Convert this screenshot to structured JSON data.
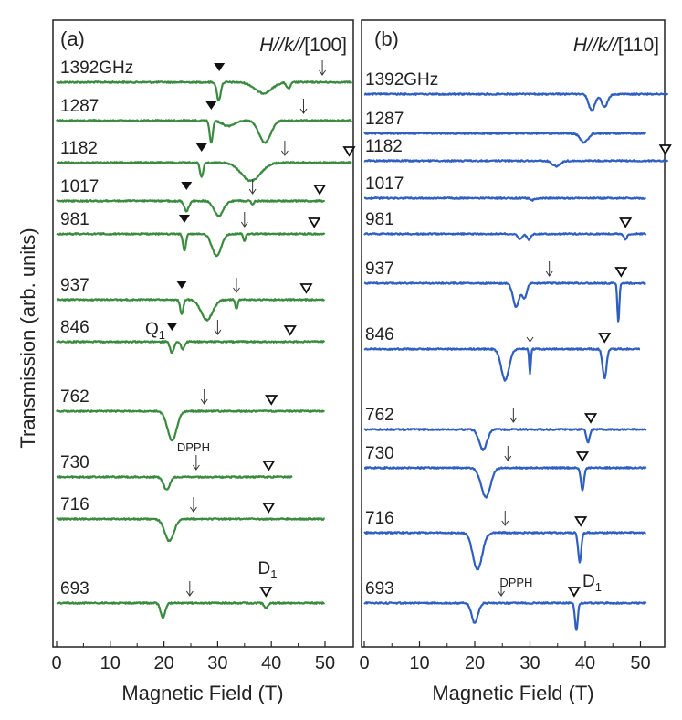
{
  "figure": {
    "ylabel": "Transmission (arb. units)",
    "xlabel": "Magnetic Field (T)"
  },
  "chart_data": [
    {
      "type": "line",
      "panel": "(a)",
      "field_prefix": "H//k//",
      "field_direction": "[100]",
      "xlabel": "Magnetic Field (T)",
      "ylabel": "Transmission (arb. units)",
      "xlim": [
        0,
        55
      ],
      "xticks": [
        0,
        10,
        20,
        30,
        40,
        50
      ],
      "color": "#3a8a3f",
      "grid": false,
      "series": [
        {
          "label": "1392GHz",
          "x_end": 55,
          "filled": 30.3,
          "open": null,
          "arrow": 49.5,
          "dips": [
            [
              30.2,
              20,
              0.5
            ],
            [
              38.5,
              12,
              2.2
            ],
            [
              43.2,
              7,
              0.5
            ]
          ]
        },
        {
          "label": "1287",
          "x_end": 55,
          "filled": 28.8,
          "open": null,
          "arrow": 46,
          "dips": [
            [
              28.8,
              24,
              0.4
            ],
            [
              32,
              6,
              1.5
            ],
            [
              38.8,
              24,
              1.5
            ]
          ]
        },
        {
          "label": "1182",
          "x_end": 55,
          "filled": 27,
          "open": 54.5,
          "arrow": 42.5,
          "dips": [
            [
              27,
              16,
              0.4
            ],
            [
              36.2,
              20,
              2.5
            ]
          ]
        },
        {
          "label": "1017",
          "x_end": 50,
          "filled": 24.2,
          "open": 49,
          "arrow": 36.5,
          "dips": [
            [
              24.2,
              11,
              0.6
            ],
            [
              30.2,
              16,
              1.2
            ],
            [
              36.5,
              4,
              0.3
            ]
          ]
        },
        {
          "label": "981",
          "x_end": 50,
          "filled": 23.8,
          "open": 48,
          "arrow": 35,
          "dips": [
            [
              23.8,
              18,
              0.4
            ],
            [
              29.8,
              24,
              1.2
            ],
            [
              35,
              8,
              0.3
            ]
          ]
        },
        {
          "label": "937",
          "x_end": 50,
          "filled": 23.3,
          "open": 46.5,
          "arrow": 33.5,
          "dips": [
            [
              23.3,
              16,
              0.4
            ],
            [
              28,
              22,
              1.5
            ],
            [
              33.5,
              10,
              0.3
            ]
          ]
        },
        {
          "label": "846",
          "x_end": 50,
          "filled": 21.5,
          "open": 43.5,
          "arrow": 30,
          "dips": [
            [
              21.5,
              12,
              0.5
            ],
            [
              23.5,
              8,
              0.5
            ]
          ]
        },
        {
          "label": "762",
          "x_end": 50,
          "filled": null,
          "open": 40,
          "arrow": 27.5,
          "dips": [
            [
              21.5,
              32,
              1.2
            ]
          ]
        },
        {
          "label": "730",
          "x_end": 44,
          "filled": null,
          "open": 39.5,
          "arrow": 26,
          "dips": [
            [
              20.5,
              14,
              0.8
            ]
          ]
        },
        {
          "label": "716",
          "x_end": 50,
          "filled": null,
          "open": 39.5,
          "arrow": 25.5,
          "dips": [
            [
              21,
              24,
              1.2
            ]
          ]
        },
        {
          "label": "693",
          "x_end": 50,
          "filled": null,
          "open": 39,
          "arrow": 24.8,
          "dips": [
            [
              19.8,
              16,
              0.6
            ],
            [
              39,
              5,
              0.5
            ]
          ]
        }
      ],
      "annotations": {
        "q_label": "Q",
        "q_sub": "1",
        "d_label": "D",
        "d_sub": "1",
        "dpph": "DPPH"
      }
    },
    {
      "type": "line",
      "panel": "(b)",
      "field_prefix": "H//k//",
      "field_direction": "[110]",
      "xlabel": "Magnetic Field (T)",
      "ylabel": "Transmission (arb. units)",
      "xlim": [
        0,
        55
      ],
      "xticks": [
        0,
        10,
        20,
        30,
        40,
        50
      ],
      "color": "#2f5fc0",
      "grid": false,
      "series": [
        {
          "label": "1392GHz",
          "x_end": 55,
          "open": null,
          "arrow": null,
          "dips": [
            [
              41.2,
              18,
              0.8
            ],
            [
              43.5,
              14,
              0.8
            ]
          ]
        },
        {
          "label": "1287",
          "x_end": 51,
          "open": null,
          "arrow": null,
          "dips": [
            [
              39.8,
              10,
              1.0
            ]
          ]
        },
        {
          "label": "1182",
          "x_end": 55,
          "open": 54.5,
          "arrow": null,
          "dips": [
            [
              34.8,
              6,
              1.0
            ]
          ]
        },
        {
          "label": "1017",
          "x_end": 51,
          "open": null,
          "arrow": null,
          "dips": [
            [
              30.5,
              2,
              0.5
            ]
          ]
        },
        {
          "label": "981",
          "x_end": 51,
          "open": 47.3,
          "arrow": null,
          "dips": [
            [
              28.2,
              6,
              0.5
            ],
            [
              29.8,
              6,
              0.5
            ],
            [
              47.3,
              6,
              0.4
            ]
          ]
        },
        {
          "label": "937",
          "x_end": 51,
          "open": 46.5,
          "arrow": 33.5,
          "dips": [
            [
              27.5,
              26,
              0.8
            ],
            [
              29,
              16,
              0.6
            ],
            [
              46,
              42,
              0.25
            ]
          ]
        },
        {
          "label": "846",
          "x_end": 50,
          "open": 43.5,
          "arrow": 30,
          "dips": [
            [
              25.5,
              34,
              1.0
            ],
            [
              30,
              28,
              0.2
            ],
            [
              43.5,
              32,
              0.5
            ]
          ]
        },
        {
          "label": "762",
          "x_end": 51,
          "open": 41,
          "arrow": 27,
          "dips": [
            [
              21.5,
              22,
              1.0
            ],
            [
              40.5,
              14,
              0.4
            ]
          ]
        },
        {
          "label": "730",
          "x_end": 51,
          "open": 39.5,
          "arrow": 26,
          "dips": [
            [
              22,
              32,
              1.2
            ],
            [
              39.5,
              24,
              0.4
            ]
          ]
        },
        {
          "label": "716",
          "x_end": 51,
          "open": 39.2,
          "arrow": 25.5,
          "dips": [
            [
              20.5,
              40,
              1.2
            ],
            [
              39,
              32,
              0.4
            ]
          ]
        },
        {
          "label": "693",
          "x_end": 51,
          "open": 38,
          "arrow": 24.8,
          "dips": [
            [
              20,
              22,
              0.8
            ],
            [
              38.4,
              30,
              0.35
            ]
          ]
        }
      ],
      "annotations": {
        "d_label": "D",
        "d_sub": "1",
        "dpph": "DPPH"
      }
    }
  ]
}
